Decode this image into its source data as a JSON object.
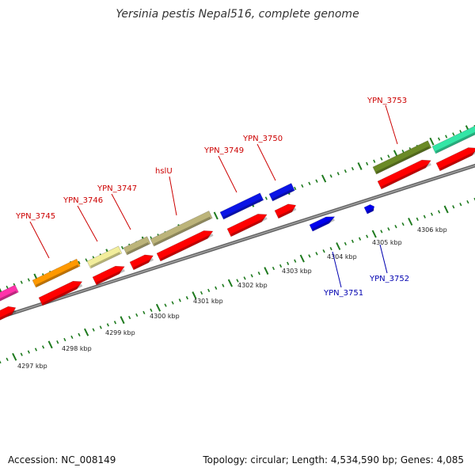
{
  "title": "Yersinia pestis Nepal516, complete genome",
  "footer": {
    "accession": "Accession: NC_008149",
    "summary": "Topology: circular; Length: 4,534,590 bp; Genes: 4,085"
  },
  "colors": {
    "background": "#ffffff",
    "backbone": "#888888",
    "tick": "#1e7a1e",
    "gene_label": "#cc0000",
    "minus_label": "#0000b0",
    "cds": "#ff0000",
    "minus_gene": "#0000ee"
  },
  "scale": {
    "unit": "kbp",
    "labels": [
      {
        "text": "4297 kbp"
      },
      {
        "text": "4298 kbp"
      },
      {
        "text": "4299 kbp"
      },
      {
        "text": "4300 kbp"
      },
      {
        "text": "4301 kbp"
      },
      {
        "text": "4302 kbp"
      },
      {
        "text": "4303 kbp"
      },
      {
        "text": "4304 kbp"
      },
      {
        "text": "4305 kbp"
      },
      {
        "text": "4306 kbp"
      }
    ]
  },
  "genes": [
    {
      "label": "",
      "feature_color": "#ff33aa"
    },
    {
      "label": "YPN_3745",
      "feature_color": "#ff9900"
    },
    {
      "label": "YPN_3746",
      "feature_color": "#f2ee9c"
    },
    {
      "label": "YPN_3747",
      "feature_color": "#bcb47a"
    },
    {
      "label": "hslU",
      "feature_color": "#bcb47a"
    },
    {
      "label": "YPN_3749",
      "feature_color": "#0a14e6"
    },
    {
      "label": "YPN_3750",
      "feature_color": "#0a14e6"
    },
    {
      "label": "",
      "feature_color": "#6b8a26"
    },
    {
      "label": "",
      "feature_color": "#33e6a6"
    }
  ],
  "minus_genes": [
    {
      "label": "YPN_3751"
    },
    {
      "label": "YPN_3752"
    }
  ]
}
